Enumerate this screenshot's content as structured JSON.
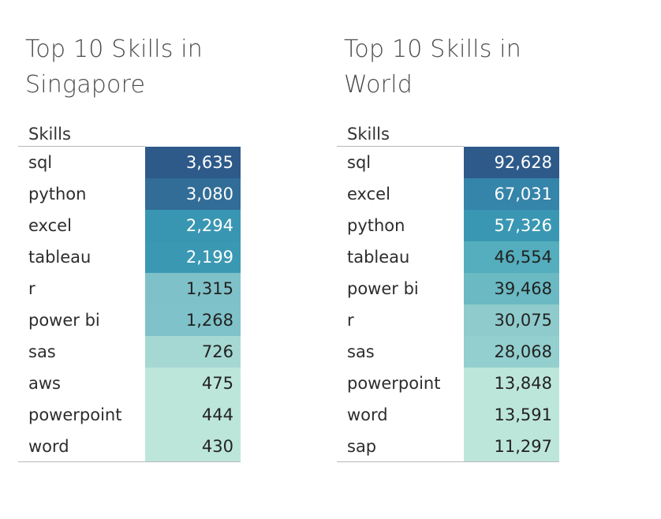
{
  "chart_data": [
    {
      "type": "table",
      "title": "Top 10 Skills in Singapore",
      "column_header": "Skills",
      "categories": [
        "sql",
        "python",
        "excel",
        "tableau",
        "r",
        "power bi",
        "sas",
        "aws",
        "powerpoint",
        "word"
      ],
      "values": [
        3635,
        3080,
        2294,
        2199,
        1315,
        1268,
        726,
        475,
        444,
        430
      ],
      "value_labels": [
        "3,635",
        "3,080",
        "2,294",
        "2,199",
        "1,315",
        "1,268",
        "726",
        "475",
        "444",
        "430"
      ],
      "colors": [
        "#2e5a8a",
        "#316d97",
        "#3996b2",
        "#3a98b3",
        "#7fc1c8",
        "#7fc2c9",
        "#a6d8d3",
        "#bde6db",
        "#bde6db",
        "#bde6db"
      ],
      "text_colors": [
        "#ffffff",
        "#ffffff",
        "#ffffff",
        "#ffffff",
        "#222222",
        "#222222",
        "#222222",
        "#222222",
        "#222222",
        "#222222"
      ]
    },
    {
      "type": "table",
      "title": "Top 10 Skills in World",
      "column_header": "Skills",
      "categories": [
        "sql",
        "excel",
        "python",
        "tableau",
        "power bi",
        "r",
        "sas",
        "powerpoint",
        "word",
        "sap"
      ],
      "values": [
        92628,
        67031,
        57326,
        46554,
        39468,
        30075,
        28068,
        13848,
        13591,
        11297
      ],
      "value_labels": [
        "92,628",
        "67,031",
        "57,326",
        "46,554",
        "39,468",
        "30,075",
        "28,068",
        "13,848",
        "13,591",
        "11,297"
      ],
      "colors": [
        "#2e5a8a",
        "#3584aa",
        "#3a97b3",
        "#54aebd",
        "#6ab9c3",
        "#8fcbcc",
        "#93cfcf",
        "#bde6db",
        "#bde6db",
        "#bde6db"
      ],
      "text_colors": [
        "#ffffff",
        "#ffffff",
        "#ffffff",
        "#222222",
        "#222222",
        "#222222",
        "#222222",
        "#222222",
        "#222222",
        "#222222"
      ]
    }
  ]
}
